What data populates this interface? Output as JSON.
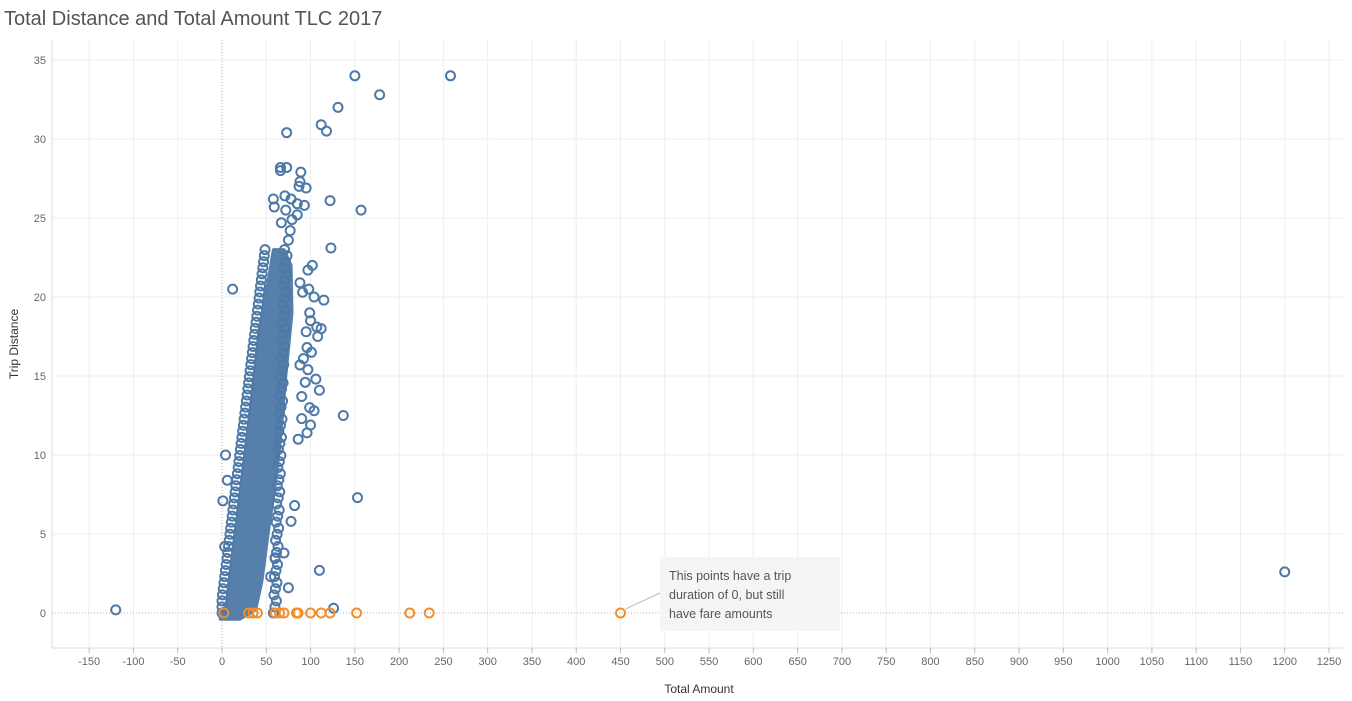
{
  "title": "Total Distance and Total Amount TLC 2017",
  "colors": {
    "normal": "#4e79a7",
    "zero_duration": "#f28e2b",
    "grid": "#eeeeee",
    "zero_line": "#999999"
  },
  "chart_data": {
    "type": "scatter",
    "title": "Total Distance and Total Amount TLC 2017",
    "xlabel": "Total Amount",
    "ylabel": "Trip Distance",
    "xlim": [
      -175,
      1275
    ],
    "ylim": [
      -2,
      35.5
    ],
    "x_ticks": [
      "-150",
      "-100",
      "-50",
      "0",
      "50",
      "100",
      "150",
      "200",
      "250",
      "300",
      "350",
      "400",
      "450",
      "500",
      "550",
      "600",
      "650",
      "700",
      "750",
      "800",
      "850",
      "900",
      "950",
      "1000",
      "1050",
      "1100",
      "1150",
      "1200",
      "1250"
    ],
    "y_ticks": [
      "0",
      "5",
      "10",
      "15",
      "20",
      "25",
      "30",
      "35"
    ],
    "grid": true,
    "series": [
      {
        "color": "#4e79a7",
        "points": [
          [
            150,
            34.0
          ],
          [
            258,
            34.0
          ],
          [
            178,
            32.8
          ],
          [
            131,
            32.0
          ],
          [
            112,
            30.9
          ],
          [
            118,
            30.5
          ],
          [
            73,
            30.4
          ],
          [
            66,
            28.2
          ],
          [
            73,
            28.2
          ],
          [
            89,
            27.9
          ],
          [
            66,
            28.0
          ],
          [
            88,
            27.3
          ],
          [
            87,
            27.0
          ],
          [
            95,
            26.9
          ],
          [
            71,
            26.4
          ],
          [
            78,
            26.2
          ],
          [
            58,
            26.2
          ],
          [
            85,
            25.9
          ],
          [
            93,
            25.8
          ],
          [
            59,
            25.7
          ],
          [
            122,
            26.1
          ],
          [
            157,
            25.5
          ],
          [
            72,
            25.5
          ],
          [
            85,
            25.2
          ],
          [
            79,
            24.9
          ],
          [
            67,
            24.7
          ],
          [
            77,
            24.2
          ],
          [
            75,
            23.6
          ],
          [
            123,
            23.1
          ],
          [
            102,
            22.0
          ],
          [
            97,
            21.7
          ],
          [
            12,
            20.5
          ],
          [
            88,
            20.9
          ],
          [
            91,
            20.3
          ],
          [
            98,
            20.5
          ],
          [
            104,
            20.0
          ],
          [
            115,
            19.8
          ],
          [
            99,
            19.0
          ],
          [
            100,
            18.5
          ],
          [
            107,
            18.1
          ],
          [
            112,
            18.0
          ],
          [
            95,
            17.8
          ],
          [
            108,
            17.5
          ],
          [
            96,
            16.8
          ],
          [
            101,
            16.5
          ],
          [
            92,
            16.1
          ],
          [
            88,
            15.7
          ],
          [
            97,
            15.4
          ],
          [
            106,
            14.8
          ],
          [
            94,
            14.6
          ],
          [
            110,
            14.1
          ],
          [
            90,
            13.7
          ],
          [
            99,
            13.0
          ],
          [
            104,
            12.8
          ],
          [
            137,
            12.5
          ],
          [
            90,
            12.3
          ],
          [
            100,
            11.9
          ],
          [
            96,
            11.4
          ],
          [
            86,
            11.0
          ],
          [
            4,
            10.0
          ],
          [
            6,
            8.4
          ],
          [
            1,
            7.1
          ],
          [
            153,
            7.3
          ],
          [
            82,
            6.8
          ],
          [
            78,
            5.8
          ],
          [
            3,
            4.2
          ],
          [
            70,
            3.8
          ],
          [
            60,
            3.5
          ],
          [
            110,
            2.7
          ],
          [
            55,
            2.3
          ],
          [
            75,
            1.6
          ],
          [
            1200,
            2.6
          ],
          [
            -120,
            0.2
          ],
          [
            126,
            0.3
          ]
        ]
      },
      {
        "color": "#f28e2b",
        "points": [
          [
            2,
            0
          ],
          [
            30,
            0
          ],
          [
            35,
            0
          ],
          [
            40,
            0
          ],
          [
            60,
            0
          ],
          [
            65,
            0
          ],
          [
            70,
            0
          ],
          [
            84,
            0
          ],
          [
            86,
            0
          ],
          [
            100,
            0
          ],
          [
            112,
            0
          ],
          [
            122,
            0
          ],
          [
            152,
            0
          ],
          [
            212,
            0
          ],
          [
            234,
            0
          ],
          [
            450,
            0
          ]
        ]
      }
    ],
    "annotation": {
      "text": [
        "This points have a trip",
        "duration of 0, but still",
        "have fare amounts"
      ],
      "point": [
        450,
        0
      ]
    }
  }
}
